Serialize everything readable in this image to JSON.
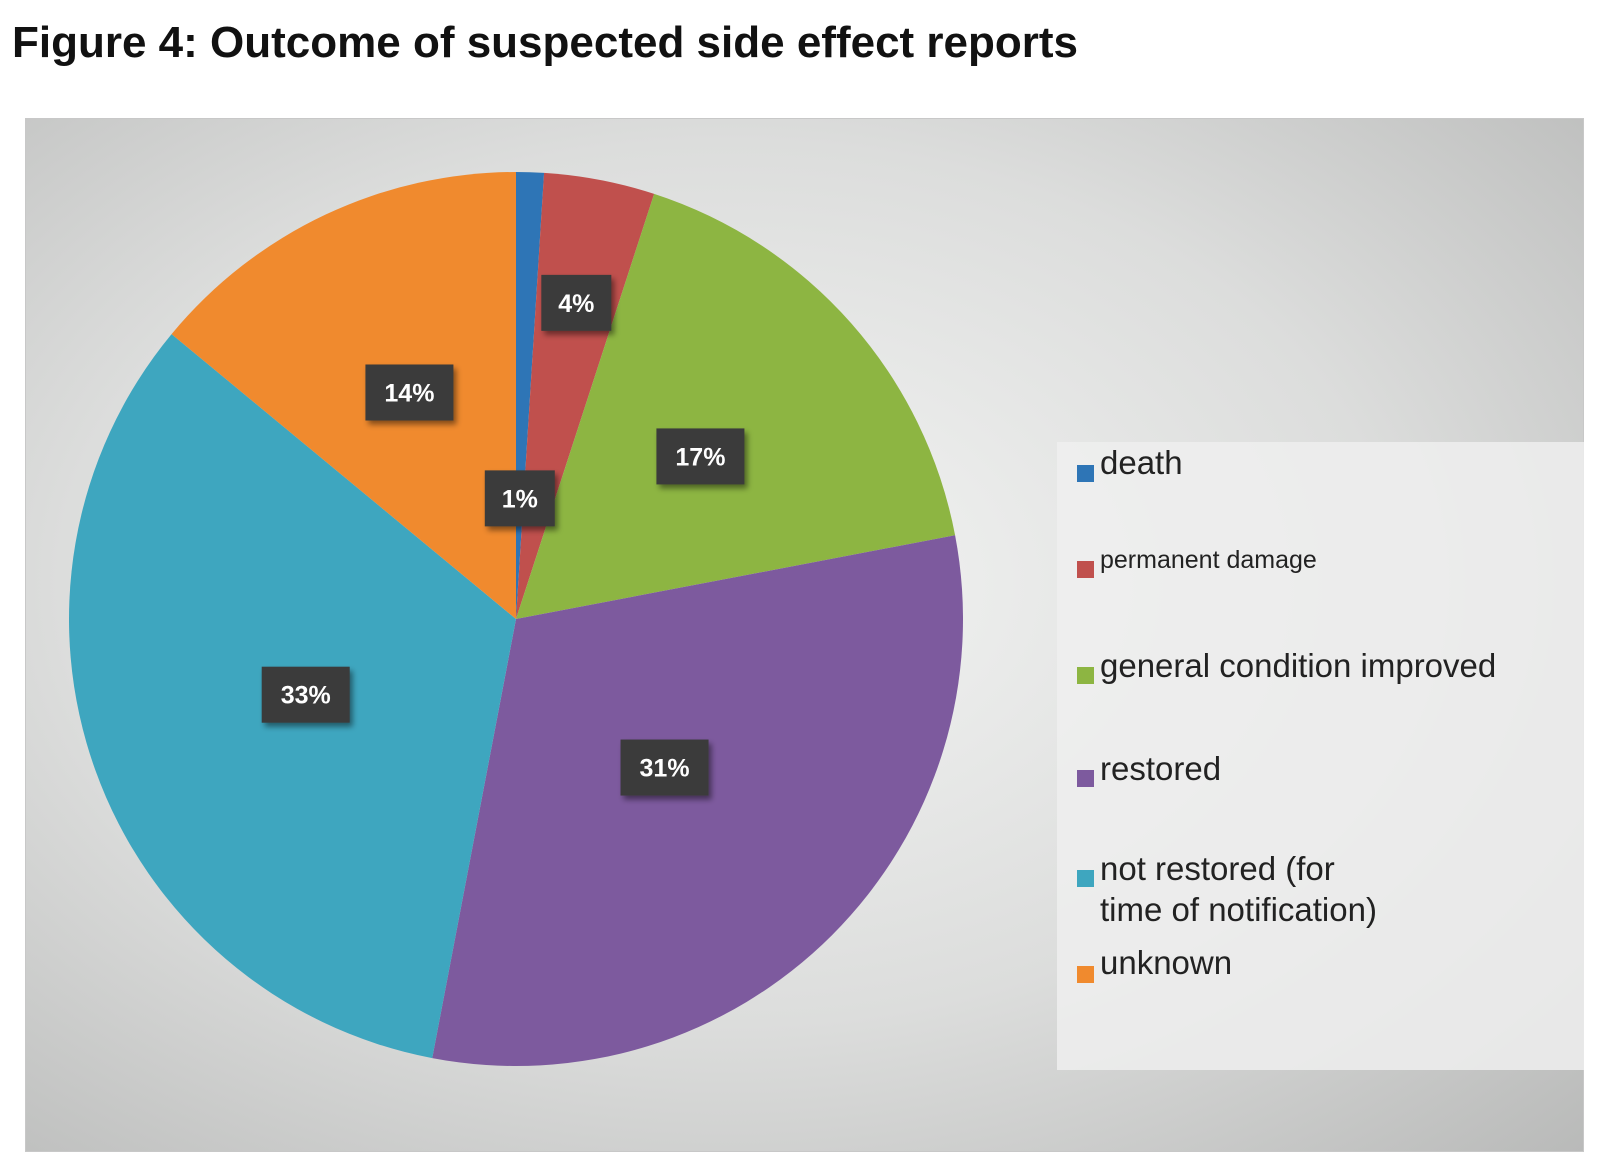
{
  "title": "Figure 4: Outcome of suspected side effect reports",
  "chart_data": {
    "type": "pie",
    "title": "Figure 4: Outcome of suspected side effect reports",
    "legend_position": "right",
    "slices": [
      {
        "label": "death",
        "value": 1,
        "data_label": "1%",
        "color": "#2e75b6"
      },
      {
        "label": "permanent damage",
        "value": 4,
        "data_label": "4%",
        "color": "#c0504d"
      },
      {
        "label": "general condition improved",
        "value": 17,
        "data_label": "17%",
        "color": "#8db542"
      },
      {
        "label": "restored",
        "value": 31,
        "data_label": "31%",
        "color": "#7d5a9e"
      },
      {
        "label": "not restored (for time of notification)",
        "value": 33,
        "data_label": "33%",
        "color": "#3ea6bf"
      },
      {
        "label": "unknown",
        "value": 14,
        "data_label": "14%",
        "color": "#f08a2e"
      }
    ]
  },
  "legend": {
    "items": [
      {
        "label": "death"
      },
      {
        "label": "permanent damage"
      },
      {
        "label": "general condition improved"
      },
      {
        "label": "restored"
      },
      {
        "label": "not restored (for time of notification)"
      },
      {
        "label": "unknown"
      }
    ]
  }
}
